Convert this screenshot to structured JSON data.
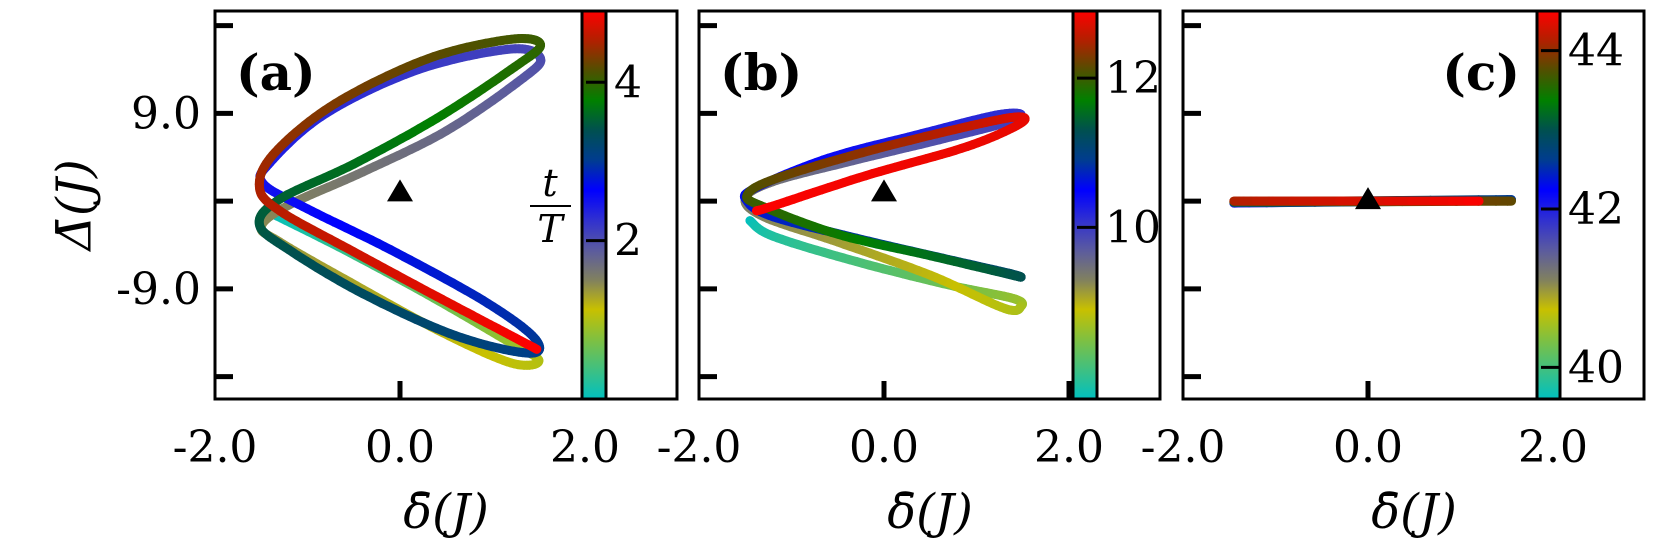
{
  "chart_data": [
    {
      "type": "line",
      "panel_label": "(a)",
      "xlabel": "δ̄(J)",
      "ylabel": "Δ̄(J)",
      "xlim": [
        -2.0,
        3.0
      ],
      "ylim": [
        -20.3,
        19.5
      ],
      "x_ticks": [
        -2.0,
        0.0,
        2.0
      ],
      "x_tick_labels": [
        "-2.0",
        "0.0",
        "2.0"
      ],
      "y_ticks": [
        -18,
        -9,
        0,
        9,
        18
      ],
      "y_tick_labels": [
        "",
        "-9.0",
        "",
        "9.0",
        ""
      ],
      "marker": {
        "shape": "triangle",
        "x": 0.0,
        "y": 1.0
      },
      "colorbar": {
        "label_num": "t",
        "label_den": "T",
        "range": [
          0.0,
          4.9
        ],
        "ticks": [
          2,
          4
        ],
        "tick_labels": [
          "2",
          "4"
        ]
      },
      "trajectory": [
        [
          -1.4,
          -1.2,
          0.0
        ],
        [
          -0.6,
          -5.0,
          0.3
        ],
        [
          0.3,
          -9.6,
          0.6
        ],
        [
          1.1,
          -14.0,
          0.85
        ],
        [
          1.5,
          -16.3,
          1.0
        ],
        [
          1.2,
          -16.6,
          1.08
        ],
        [
          0.4,
          -13.2,
          1.2
        ],
        [
          -0.6,
          -8.0,
          1.3
        ],
        [
          -1.3,
          -4.2,
          1.38
        ],
        [
          -1.5,
          -2.6,
          1.43
        ],
        [
          -1.2,
          -0.4,
          1.5
        ],
        [
          -0.4,
          3.0,
          1.62
        ],
        [
          0.5,
          7.2,
          1.75
        ],
        [
          1.3,
          12.4,
          1.9
        ],
        [
          1.52,
          14.6,
          2.0
        ],
        [
          1.2,
          15.6,
          2.08
        ],
        [
          0.2,
          13.5,
          2.2
        ],
        [
          -0.8,
          9.0,
          2.32
        ],
        [
          -1.4,
          4.0,
          2.42
        ],
        [
          -1.48,
          1.8,
          2.48
        ],
        [
          -1.0,
          -0.8,
          2.58
        ],
        [
          -0.1,
          -5.0,
          2.72
        ],
        [
          0.9,
          -10.2,
          2.88
        ],
        [
          1.45,
          -14.0,
          2.98
        ],
        [
          1.4,
          -15.6,
          3.05
        ],
        [
          0.6,
          -13.8,
          3.18
        ],
        [
          -0.4,
          -9.5,
          3.3
        ],
        [
          -1.2,
          -5.0,
          3.4
        ],
        [
          -1.52,
          -2.4,
          3.46
        ],
        [
          -1.3,
          0.2,
          3.52
        ],
        [
          -0.5,
          3.8,
          3.64
        ],
        [
          0.4,
          8.5,
          3.78
        ],
        [
          1.2,
          13.5,
          3.92
        ],
        [
          1.52,
          16.0,
          4.0
        ],
        [
          1.2,
          16.6,
          4.08
        ],
        [
          0.3,
          14.6,
          4.2
        ],
        [
          -0.7,
          10.0,
          4.32
        ],
        [
          -1.35,
          5.0,
          4.42
        ],
        [
          -1.52,
          1.5,
          4.5
        ],
        [
          -1.3,
          -1.0,
          4.56
        ],
        [
          -0.5,
          -5.2,
          4.66
        ],
        [
          0.4,
          -9.8,
          4.76
        ],
        [
          1.1,
          -13.3,
          4.84
        ],
        [
          1.48,
          -15.2,
          4.9
        ]
      ]
    },
    {
      "type": "line",
      "panel_label": "(b)",
      "xlabel": "δ̄(J)",
      "xlim": [
        -2.0,
        3.0
      ],
      "ylim": [
        -20.3,
        19.5
      ],
      "x_ticks": [
        -2.0,
        0.0,
        2.0
      ],
      "x_tick_labels": [
        "-2.0",
        "0.0",
        "2.0"
      ],
      "y_ticks": [
        -18,
        -9,
        0,
        9,
        18
      ],
      "marker": {
        "shape": "triangle",
        "x": 0.0,
        "y": 1.0
      },
      "colorbar": {
        "range": [
          7.7,
          12.9
        ],
        "ticks": [
          10,
          12
        ],
        "tick_labels": [
          "10",
          "12"
        ]
      },
      "trajectory": [
        [
          -1.45,
          -2.0,
          7.7
        ],
        [
          -1.2,
          -3.6,
          7.9
        ],
        [
          -0.3,
          -6.2,
          8.15
        ],
        [
          0.7,
          -8.6,
          8.4
        ],
        [
          1.4,
          -10.0,
          8.6
        ],
        [
          1.48,
          -10.8,
          8.7
        ],
        [
          1.3,
          -11.0,
          8.78
        ],
        [
          0.5,
          -7.6,
          8.95
        ],
        [
          -0.5,
          -4.2,
          9.12
        ],
        [
          -1.3,
          -1.6,
          9.28
        ],
        [
          -1.5,
          0.3,
          9.36
        ],
        [
          -1.2,
          2.0,
          9.45
        ],
        [
          -0.4,
          4.0,
          9.6
        ],
        [
          0.6,
          6.3,
          9.8
        ],
        [
          1.3,
          8.0,
          9.95
        ],
        [
          1.48,
          8.9,
          10.05
        ],
        [
          1.2,
          8.8,
          10.12
        ],
        [
          0.4,
          6.9,
          10.25
        ],
        [
          -0.6,
          4.4,
          10.42
        ],
        [
          -1.4,
          1.3,
          10.55
        ],
        [
          -1.48,
          0.0,
          10.62
        ],
        [
          -1.2,
          -1.6,
          10.7
        ],
        [
          -0.3,
          -3.8,
          10.85
        ],
        [
          0.7,
          -6.0,
          11.05
        ],
        [
          1.35,
          -7.4,
          11.2
        ],
        [
          1.48,
          -7.8,
          11.28
        ],
        [
          1.3,
          -7.4,
          11.35
        ],
        [
          0.5,
          -5.6,
          11.55
        ],
        [
          -0.5,
          -3.4,
          11.75
        ],
        [
          -1.3,
          -0.6,
          11.95
        ],
        [
          -1.48,
          0.6,
          12.05
        ],
        [
          -1.2,
          2.2,
          12.15
        ],
        [
          -0.3,
          4.8,
          12.35
        ],
        [
          0.7,
          7.2,
          12.55
        ],
        [
          1.4,
          8.6,
          12.72
        ],
        [
          1.48,
          8.0,
          12.78
        ],
        [
          0.9,
          5.6,
          12.8
        ],
        [
          -0.2,
          2.6,
          12.84
        ],
        [
          -1.2,
          -0.5,
          12.88
        ],
        [
          -1.38,
          -1.0,
          12.9
        ]
      ]
    },
    {
      "type": "line",
      "panel_label": "(c)",
      "xlabel": "δ̄(J)",
      "xlim": [
        -2.0,
        3.0
      ],
      "ylim": [
        -20.3,
        19.5
      ],
      "x_ticks": [
        -2.0,
        0.0,
        2.0
      ],
      "x_tick_labels": [
        "-2.0",
        "0.0",
        "2.0"
      ],
      "y_ticks": [
        -18,
        -9,
        0,
        9,
        18
      ],
      "marker": {
        "shape": "triangle",
        "x": 0.0,
        "y": 0.2
      },
      "colorbar": {
        "range": [
          39.6,
          44.5
        ],
        "ticks": [
          40,
          42,
          44
        ],
        "tick_labels": [
          "40",
          "42",
          "44"
        ]
      },
      "trajectory": [
        [
          -1.45,
          -0.1,
          39.6
        ],
        [
          1.55,
          0.1,
          40.2
        ],
        [
          -1.45,
          -0.1,
          40.8
        ],
        [
          1.55,
          0.1,
          41.4
        ],
        [
          -1.45,
          -0.2,
          42.0
        ],
        [
          1.55,
          0.15,
          42.6
        ],
        [
          -1.45,
          -0.1,
          43.2
        ],
        [
          1.55,
          0.0,
          43.8
        ],
        [
          -1.45,
          0.0,
          44.1
        ],
        [
          1.2,
          0.0,
          44.5
        ]
      ]
    }
  ],
  "colormap": [
    "#00c0c0",
    "#40c080",
    "#80c040",
    "#c8c000",
    "#808060",
    "#5a5aa0",
    "#3030d0",
    "#0000ff",
    "#003c90",
    "#005050",
    "#008000",
    "#505000",
    "#b02000",
    "#ff0000"
  ]
}
